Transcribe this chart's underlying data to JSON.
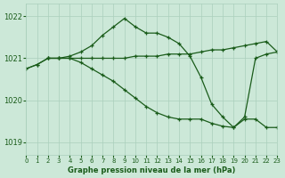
{
  "title": "Graphe pression niveau de la mer (hPa)",
  "background_color": "#cce8d8",
  "grid_color": "#aacfbc",
  "line_color": "#1a5c1a",
  "xlim": [
    0,
    23
  ],
  "ylim": [
    1018.7,
    1022.3
  ],
  "yticks": [
    1019,
    1020,
    1021,
    1022
  ],
  "xticks": [
    0,
    1,
    2,
    3,
    4,
    5,
    6,
    7,
    8,
    9,
    10,
    11,
    12,
    13,
    14,
    15,
    16,
    17,
    18,
    19,
    20,
    21,
    22,
    23
  ],
  "series": [
    {
      "x": [
        0,
        1,
        2,
        3,
        4,
        5,
        6,
        7,
        8,
        9,
        10,
        11,
        12,
        13,
        14,
        15,
        16,
        17,
        18,
        19,
        20,
        21,
        22,
        23
      ],
      "y": [
        1020.75,
        1020.85,
        1021.0,
        1021.0,
        1021.0,
        1021.0,
        1021.0,
        1021.0,
        1021.0,
        1021.0,
        1021.05,
        1021.05,
        1021.05,
        1021.1,
        1021.1,
        1021.1,
        1021.15,
        1021.2,
        1021.2,
        1021.25,
        1021.3,
        1021.35,
        1021.4,
        1021.15
      ]
    },
    {
      "x": [
        2,
        3,
        4,
        5,
        6,
        7,
        8,
        9,
        10,
        11,
        12,
        13,
        14,
        15,
        16,
        17,
        18,
        19,
        20,
        21,
        22,
        23
      ],
      "y": [
        1021.0,
        1021.0,
        1021.05,
        1021.15,
        1021.3,
        1021.55,
        1021.75,
        1021.95,
        1021.75,
        1021.6,
        1021.6,
        1021.5,
        1021.35,
        1021.05,
        1020.55,
        1019.9,
        1019.6,
        1019.35,
        1019.6,
        1021.0,
        1021.1,
        1021.15
      ]
    },
    {
      "x": [
        0,
        1,
        2,
        3,
        4,
        5,
        6,
        7,
        8,
        9,
        10,
        11,
        12,
        13,
        14,
        15,
        16,
        17,
        18,
        19,
        20,
        21,
        22,
        23
      ],
      "y": [
        1020.75,
        1020.85,
        1021.0,
        1021.0,
        1021.0,
        1020.9,
        1020.75,
        1020.6,
        1020.45,
        1020.25,
        1020.05,
        1019.85,
        1019.7,
        1019.6,
        1019.55,
        1019.55,
        1019.55,
        1019.45,
        1019.38,
        1019.35,
        1019.55,
        1019.55,
        1019.35,
        1019.35
      ]
    }
  ]
}
